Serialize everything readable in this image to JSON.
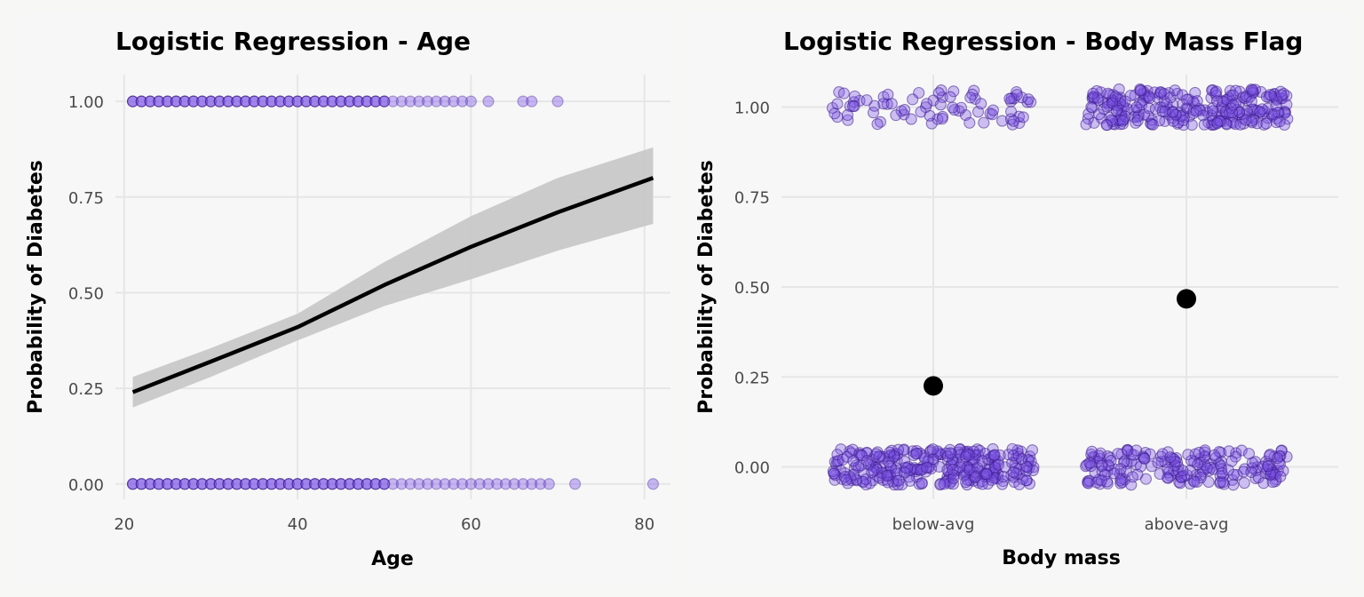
{
  "colors": {
    "background": "#f7f7f6",
    "panel": "#f7f7f7",
    "grid": "#e6e6e6",
    "point_fill": "#7b52e6",
    "point_stroke": "#3a1a8a",
    "ribbon": "#c8c8c8",
    "line": "#000000"
  },
  "chart_data": [
    {
      "type": "scatter",
      "title": "Logistic Regression - Age",
      "xlabel": "Age",
      "ylabel": "Probability of Diabetes",
      "xlim": [
        19,
        83
      ],
      "ylim": [
        -0.04,
        1.07
      ],
      "x_ticks": [
        20,
        40,
        60,
        80
      ],
      "x_tick_labels": [
        "20",
        "40",
        "60",
        "80"
      ],
      "y_ticks": [
        0,
        0.25,
        0.5,
        0.75,
        1
      ],
      "y_tick_labels": [
        "0.00",
        "0.25",
        "0.50",
        "0.75",
        "1.00"
      ],
      "grid": true,
      "series": [
        {
          "role": "observed_outcome_1",
          "y": 1,
          "x": [
            21,
            22,
            23,
            24,
            25,
            26,
            27,
            28,
            29,
            30,
            31,
            32,
            33,
            34,
            35,
            36,
            37,
            38,
            39,
            40,
            41,
            42,
            43,
            44,
            45,
            46,
            47,
            48,
            49,
            50,
            51,
            52,
            53,
            54,
            55,
            56,
            57,
            58,
            59,
            60,
            62,
            66,
            67,
            70
          ]
        },
        {
          "role": "observed_outcome_0",
          "y": 0,
          "x": [
            21,
            22,
            23,
            24,
            25,
            26,
            27,
            28,
            29,
            30,
            31,
            32,
            33,
            34,
            35,
            36,
            37,
            38,
            39,
            40,
            41,
            42,
            43,
            44,
            45,
            46,
            47,
            48,
            49,
            50,
            51,
            52,
            53,
            54,
            55,
            56,
            57,
            58,
            59,
            60,
            61,
            62,
            63,
            64,
            65,
            66,
            67,
            68,
            69,
            72,
            81
          ]
        },
        {
          "role": "fitted_curve",
          "x": [
            21,
            30,
            40,
            50,
            60,
            70,
            81
          ],
          "y": [
            0.24,
            0.32,
            0.41,
            0.52,
            0.62,
            0.71,
            0.8
          ]
        },
        {
          "role": "confidence_band",
          "x": [
            21,
            30,
            40,
            50,
            60,
            70,
            81
          ],
          "lower": [
            0.2,
            0.28,
            0.375,
            0.465,
            0.535,
            0.61,
            0.68
          ],
          "upper": [
            0.28,
            0.355,
            0.445,
            0.58,
            0.7,
            0.8,
            0.88
          ]
        }
      ]
    },
    {
      "type": "scatter",
      "title": "Logistic Regression - Body Mass Flag",
      "xlabel": "Body mass",
      "ylabel": "Probability of Diabetes",
      "categories": [
        "below-avg",
        "above-avg"
      ],
      "ylim": [
        -0.09,
        1.09
      ],
      "y_ticks": [
        0,
        0.25,
        0.5,
        0.75,
        1
      ],
      "y_tick_labels": [
        "0.00",
        "0.25",
        "0.50",
        "0.75",
        "1.00"
      ],
      "grid": true,
      "jitter": {
        "width": 0.4,
        "height": 0.05
      },
      "counts": {
        "below-avg": {
          "outcome_0": 300,
          "outcome_1": 80
        },
        "above-avg": {
          "outcome_0": 200,
          "outcome_1": 270
        }
      },
      "predicted_probability": [
        0.225,
        0.467
      ]
    }
  ]
}
